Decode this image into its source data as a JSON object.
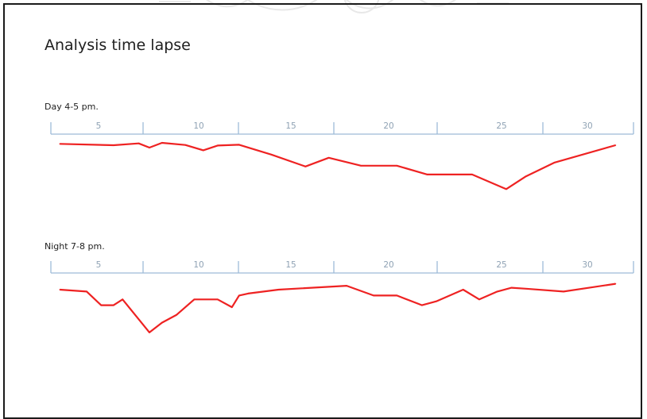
{
  "watermark": {
    "description": "faint circular seal/logo watermark at top edge"
  },
  "colors": {
    "line": "#ee2222",
    "axis": "#9dbbd8",
    "tick_text": "#8fa2b4",
    "frame": "#1a1a1a"
  },
  "chart_data": [
    {
      "type": "line",
      "title": "Analysis time lapse",
      "panel_label": "Day 4-5 pm.",
      "tick_labels": [
        "5",
        "10",
        "15",
        "20",
        "25",
        "30"
      ],
      "xlim": [
        0.5,
        33
      ],
      "series": [
        {
          "values_x": [
            1,
            4,
            5.4,
            6,
            6.7,
            8,
            9,
            9.8,
            11,
            12.8,
            14.7,
            16,
            17.8,
            19.8,
            21.5,
            24,
            25.9,
            27,
            28.6,
            32
          ],
          "values_y": [
            1,
            1.5,
            0.8,
            2.4,
            0.6,
            1.4,
            3.4,
            1.6,
            1.3,
            5.0,
            9.5,
            6.2,
            9.2,
            9.2,
            12.5,
            12.5,
            18.0,
            13.2,
            8.0,
            1.5
          ]
        }
      ]
    },
    {
      "type": "line",
      "panel_label": "Night 7-8 pm.",
      "tick_labels": [
        "5",
        "10",
        "15",
        "20",
        "25",
        "30"
      ],
      "xlim": [
        0.5,
        33
      ],
      "series": [
        {
          "values_x": [
            1,
            2.5,
            3.3,
            4,
            4.5,
            6,
            6.7,
            7.5,
            8.5,
            9.8,
            10.6,
            11,
            11.5,
            13.2,
            17,
            18.5,
            19.8,
            21.2,
            22,
            23.5,
            24.4,
            25.4,
            26.2,
            27,
            29.1,
            32
          ],
          "values_y": [
            0,
            1,
            8,
            8,
            5,
            22,
            17,
            13,
            5,
            5,
            9,
            3,
            2,
            0,
            -2,
            3,
            3,
            8,
            6,
            0,
            5,
            1,
            -1,
            -0.5,
            1,
            -3
          ]
        }
      ]
    }
  ]
}
